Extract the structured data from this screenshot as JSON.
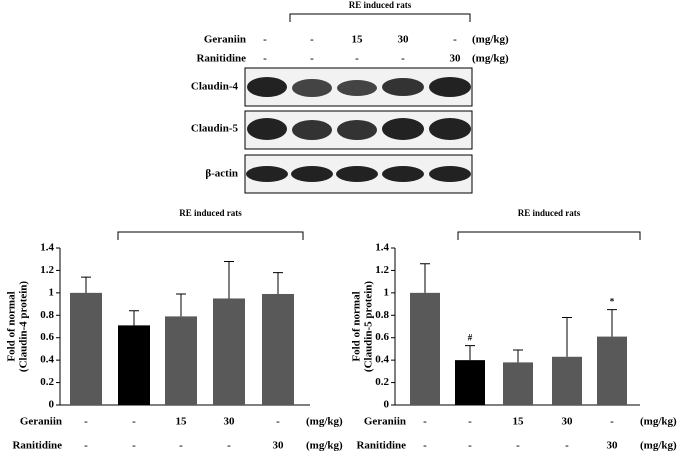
{
  "blot": {
    "header": "RE induced rats",
    "rows": [
      {
        "name": "Geraniin",
        "doses": [
          "-",
          "-",
          "15",
          "30",
          "-"
        ],
        "unit": "(mg/kg)"
      },
      {
        "name": "Ranitidine",
        "doses": [
          "-",
          "-",
          "-",
          "-",
          "30"
        ],
        "unit": "(mg/kg)"
      }
    ],
    "bands": [
      "Claudin-4",
      "Claudin-5",
      "β-actin"
    ]
  },
  "chart_data": [
    {
      "type": "bar",
      "bracket_label": "RE induced rats",
      "ylabel": [
        "Fold of normal",
        "(Claudin-4 protein)"
      ],
      "categories": [
        null,
        null,
        null,
        null,
        null
      ],
      "values": [
        1.0,
        0.71,
        0.79,
        0.95,
        0.99
      ],
      "errors": [
        0.14,
        0.13,
        0.2,
        0.33,
        0.19
      ],
      "colors": [
        "#595959",
        "#000000",
        "#595959",
        "#595959",
        "#595959"
      ],
      "ylim": [
        0,
        1.4
      ],
      "yticks": [
        0,
        0.2,
        0.4,
        0.6,
        0.8,
        1,
        1.2,
        1.4
      ],
      "treatments": [
        {
          "name": "Geraniin",
          "doses": [
            "-",
            "-",
            "15",
            "30",
            "-"
          ],
          "unit": "(mg/kg)"
        },
        {
          "name": "Ranitidine",
          "doses": [
            "-",
            "-",
            "-",
            "-",
            "30"
          ],
          "unit": "(mg/kg)"
        }
      ]
    },
    {
      "type": "bar",
      "bracket_label": "RE induced rats",
      "ylabel": [
        "Fold of normal",
        "(Claudin-5 protein)"
      ],
      "categories": [
        null,
        null,
        null,
        null,
        null
      ],
      "values": [
        1.0,
        0.4,
        0.38,
        0.43,
        0.61
      ],
      "errors": [
        0.26,
        0.13,
        0.11,
        0.35,
        0.24
      ],
      "markers": [
        null,
        "#",
        null,
        null,
        "*"
      ],
      "colors": [
        "#595959",
        "#000000",
        "#595959",
        "#595959",
        "#595959"
      ],
      "ylim": [
        0,
        1.4
      ],
      "yticks": [
        0,
        0.2,
        0.4,
        0.6,
        0.8,
        1,
        1.2,
        1.4
      ],
      "treatments": [
        {
          "name": "Geraniin",
          "doses": [
            "-",
            "-",
            "15",
            "30",
            "-"
          ],
          "unit": "(mg/kg)"
        },
        {
          "name": "Ranitidine",
          "doses": [
            "-",
            "-",
            "-",
            "-",
            "30"
          ],
          "unit": "(mg/kg)"
        }
      ]
    }
  ]
}
